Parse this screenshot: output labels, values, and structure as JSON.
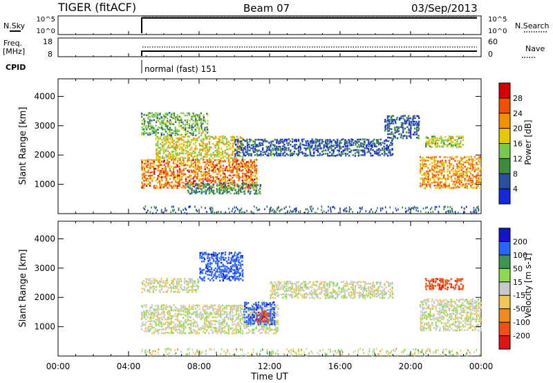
{
  "header": {
    "radar": "TIGER (fitACF)",
    "beam": "Beam 07",
    "date": "03/Sep/2013"
  },
  "top_panels": {
    "nsky_label": "N.Sky",
    "nsky_ticks": [
      "10^5",
      "10^0"
    ],
    "nsearch_label": "N.Search",
    "nsearch_ticks": [
      "10^5",
      "10^0"
    ],
    "freq_label": "Freq.",
    "freq_unit": "[MHz]",
    "freq_ticks": [
      "18",
      "8"
    ],
    "nave_label": "Nave",
    "nave_ticks": [
      "60",
      "0"
    ],
    "cpid_label": "CPID",
    "cpid_value": "normal (fast) 151",
    "data_start": "04:40"
  },
  "chart_data": [
    {
      "type": "heatmap",
      "name": "power-panel",
      "ylabel": "Slant Range [km]",
      "xlabel": "",
      "yticks": [
        1000,
        2000,
        3000,
        4000
      ],
      "ylim": [
        0,
        4600
      ],
      "xticks": [
        "00:00",
        "04:00",
        "08:00",
        "12:00",
        "16:00",
        "20:00",
        "00:00"
      ],
      "colorbar": {
        "label": "Power [dB]",
        "ticks": [
          "28",
          "24",
          "20",
          "16",
          "12",
          "8",
          "4"
        ],
        "colors": [
          "#d40000",
          "#f05000",
          "#f29000",
          "#e6c800",
          "#78c850",
          "#3c8c3c",
          "#2850a0",
          "#1428e0"
        ]
      },
      "regions": [
        {
          "t0": 4.7,
          "t1": 11.3,
          "r0": 900,
          "r1": 1900,
          "level": 24
        },
        {
          "t0": 5.5,
          "t1": 10.5,
          "r0": 1900,
          "r1": 2700,
          "level": 18
        },
        {
          "t0": 4.7,
          "t1": 8.5,
          "r0": 2700,
          "r1": 3500,
          "level": 12
        },
        {
          "t0": 7.2,
          "t1": 11.5,
          "r0": 700,
          "r1": 1100,
          "level": 10
        },
        {
          "t0": 10.0,
          "t1": 19.0,
          "r0": 2000,
          "r1": 2600,
          "level": 6
        },
        {
          "t0": 18.5,
          "t1": 20.5,
          "r0": 2600,
          "r1": 3400,
          "level": 6
        },
        {
          "t0": 20.5,
          "t1": 24.0,
          "r0": 900,
          "r1": 2000,
          "level": 22
        },
        {
          "t0": 20.8,
          "t1": 23.0,
          "r0": 2300,
          "r1": 2700,
          "level": 16
        }
      ]
    },
    {
      "type": "heatmap",
      "name": "velocity-panel",
      "ylabel": "Slant Range [km]",
      "xlabel": "Time UT",
      "yticks": [
        1000,
        2000,
        3000,
        4000
      ],
      "ylim": [
        0,
        4600
      ],
      "xticks": [
        "00:00",
        "04:00",
        "08:00",
        "12:00",
        "16:00",
        "20:00",
        "00:00"
      ],
      "colorbar": {
        "label": "Velocity [m s-1]",
        "ticks": [
          "200",
          "100",
          "50",
          "15",
          "-15",
          "-50",
          "-100",
          "-200"
        ],
        "colors": [
          "#1414c8",
          "#2864ff",
          "#3c9650",
          "#8cdc50",
          "#c8c8c8",
          "#f0c850",
          "#f08c1e",
          "#f05014",
          "#dc1414"
        ]
      },
      "regions": [
        {
          "t0": 4.7,
          "t1": 12.5,
          "r0": 800,
          "r1": 1800,
          "level": 0
        },
        {
          "t0": 4.7,
          "t1": 8.0,
          "r0": 2200,
          "r1": 2700,
          "level": 0
        },
        {
          "t0": 8.0,
          "t1": 10.5,
          "r0": 2600,
          "r1": 3600,
          "level": 180
        },
        {
          "t0": 10.5,
          "t1": 12.3,
          "r0": 1100,
          "r1": 1900,
          "level": 180
        },
        {
          "t0": 11.2,
          "t1": 12.0,
          "r0": 1200,
          "r1": 1600,
          "level": -180
        },
        {
          "t0": 12.0,
          "t1": 19.0,
          "r0": 2000,
          "r1": 2600,
          "level": 0
        },
        {
          "t0": 20.5,
          "t1": 24.0,
          "r0": 900,
          "r1": 2000,
          "level": 0
        },
        {
          "t0": 20.8,
          "t1": 23.0,
          "r0": 2300,
          "r1": 2700,
          "level": -180
        }
      ]
    }
  ]
}
